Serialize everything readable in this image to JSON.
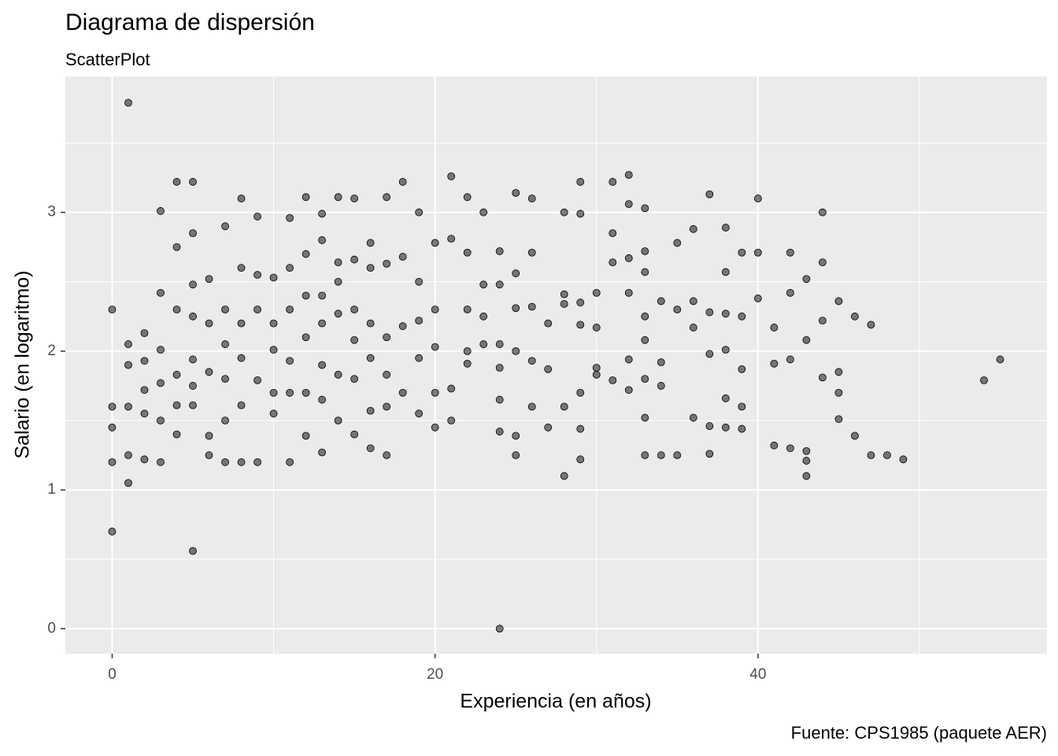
{
  "chart_data": {
    "type": "scatter",
    "title": "Diagrama de dispersión",
    "subtitle": "ScatterPlot",
    "x_label": "Experiencia (en años)",
    "y_label": "Salario (en logaritmo)",
    "caption": "Fuente: CPS1985 (paquete AER)",
    "color": "#000000",
    "xlim": [
      -2.9,
      57.9
    ],
    "ylim": [
      -0.18,
      3.98
    ],
    "xticks": [
      0,
      20,
      40
    ],
    "yticks": [
      0,
      1,
      2,
      3
    ],
    "x_minor_ticks": [
      10,
      30,
      50
    ],
    "y_minor_ticks": [
      0.5,
      1.5,
      2.5,
      3.5
    ],
    "grid": true,
    "x": [
      0,
      0,
      0,
      0,
      0,
      1,
      1,
      1,
      1,
      1,
      1,
      2,
      2,
      2,
      2,
      2,
      3,
      3,
      3,
      3,
      3,
      3,
      4,
      4,
      4,
      4,
      4,
      4,
      5,
      5,
      5,
      5,
      5,
      5,
      5,
      5,
      6,
      6,
      6,
      6,
      6,
      7,
      7,
      7,
      7,
      7,
      7,
      8,
      8,
      8,
      8,
      8,
      8,
      9,
      9,
      9,
      9,
      9,
      10,
      10,
      10,
      10,
      10,
      11,
      11,
      11,
      11,
      11,
      11,
      12,
      12,
      12,
      12,
      12,
      12,
      13,
      13,
      13,
      13,
      13,
      13,
      13,
      14,
      14,
      14,
      14,
      14,
      14,
      15,
      15,
      15,
      15,
      15,
      15,
      16,
      16,
      16,
      16,
      16,
      16,
      17,
      17,
      17,
      17,
      17,
      17,
      18,
      18,
      18,
      18,
      19,
      19,
      19,
      19,
      19,
      20,
      20,
      20,
      20,
      20,
      21,
      21,
      21,
      21,
      22,
      22,
      22,
      22,
      22,
      23,
      23,
      23,
      23,
      24,
      24,
      24,
      24,
      24,
      24,
      24,
      25,
      25,
      25,
      25,
      25,
      25,
      26,
      26,
      26,
      26,
      26,
      27,
      27,
      27,
      28,
      28,
      28,
      28,
      28,
      29,
      29,
      29,
      29,
      29,
      29,
      29,
      30,
      30,
      30,
      30,
      31,
      31,
      31,
      31,
      32,
      32,
      32,
      32,
      32,
      32,
      33,
      33,
      33,
      33,
      33,
      33,
      33,
      33,
      34,
      34,
      34,
      34,
      35,
      35,
      35,
      36,
      36,
      36,
      36,
      37,
      37,
      37,
      37,
      37,
      38,
      38,
      38,
      38,
      38,
      38,
      39,
      39,
      39,
      39,
      39,
      40,
      40,
      40,
      41,
      41,
      41,
      42,
      42,
      42,
      42,
      43,
      43,
      43,
      43,
      43,
      44,
      44,
      44,
      44,
      45,
      45,
      45,
      45,
      46,
      46,
      47,
      47,
      48,
      49,
      54,
      55
    ],
    "values": [
      0.7,
      2.3,
      1.45,
      1.6,
      1.2,
      3.79,
      1.05,
      2.05,
      1.9,
      1.6,
      1.25,
      2.13,
      1.93,
      1.72,
      1.55,
      1.22,
      3.01,
      2.42,
      2.01,
      1.77,
      1.5,
      1.2,
      3.22,
      2.75,
      2.3,
      1.83,
      1.61,
      1.4,
      0.56,
      3.22,
      2.85,
      2.48,
      2.25,
      1.94,
      1.75,
      1.61,
      2.52,
      2.2,
      1.85,
      1.39,
      1.25,
      2.9,
      2.3,
      2.05,
      1.8,
      1.5,
      1.2,
      3.1,
      2.6,
      2.2,
      1.95,
      1.61,
      1.2,
      2.97,
      2.55,
      2.3,
      1.79,
      1.2,
      2.53,
      2.2,
      2.01,
      1.7,
      1.55,
      2.96,
      2.6,
      2.3,
      1.93,
      1.7,
      1.2,
      3.11,
      2.7,
      2.4,
      2.1,
      1.7,
      1.39,
      2.99,
      2.8,
      2.4,
      2.2,
      1.9,
      1.65,
      1.27,
      3.11,
      2.64,
      2.5,
      2.27,
      1.83,
      1.5,
      3.1,
      2.66,
      2.3,
      2.08,
      1.8,
      1.4,
      2.78,
      2.6,
      2.2,
      1.95,
      1.57,
      1.3,
      3.11,
      2.63,
      2.1,
      1.83,
      1.6,
      1.25,
      3.22,
      2.68,
      2.18,
      1.7,
      3.0,
      2.5,
      2.22,
      1.95,
      1.55,
      2.78,
      2.3,
      2.03,
      1.7,
      1.45,
      3.26,
      2.81,
      1.73,
      1.5,
      3.11,
      2.71,
      2.3,
      2.0,
      1.91,
      3.0,
      2.48,
      2.25,
      2.05,
      0,
      2.72,
      2.48,
      2.05,
      1.88,
      1.65,
      1.42,
      3.14,
      2.56,
      2.31,
      2.0,
      1.39,
      1.25,
      3.1,
      2.71,
      2.32,
      1.93,
      1.6,
      2.2,
      1.87,
      1.45,
      3.0,
      2.41,
      2.34,
      1.6,
      1.1,
      3.22,
      2.99,
      2.35,
      2.19,
      1.7,
      1.44,
      1.22,
      2.42,
      2.17,
      1.88,
      1.83,
      3.22,
      2.85,
      2.64,
      1.79,
      3.27,
      3.06,
      2.67,
      2.42,
      1.94,
      1.72,
      3.03,
      2.72,
      2.57,
      2.25,
      2.08,
      1.8,
      1.52,
      1.25,
      2.36,
      1.92,
      1.75,
      1.25,
      2.78,
      2.3,
      1.25,
      2.88,
      2.36,
      2.17,
      1.52,
      3.13,
      2.28,
      1.98,
      1.46,
      1.26,
      2.89,
      2.57,
      2.27,
      2.01,
      1.66,
      1.45,
      2.71,
      2.25,
      1.87,
      1.6,
      1.44,
      3.1,
      2.71,
      2.38,
      2.17,
      1.91,
      1.32,
      2.71,
      2.42,
      1.94,
      1.3,
      2.52,
      2.08,
      1.28,
      1.21,
      1.1,
      3.0,
      2.64,
      2.22,
      1.81,
      2.36,
      1.85,
      1.7,
      1.51,
      2.25,
      1.39,
      2.19,
      1.25,
      1.25,
      1.22,
      1.79,
      1.94
    ]
  }
}
